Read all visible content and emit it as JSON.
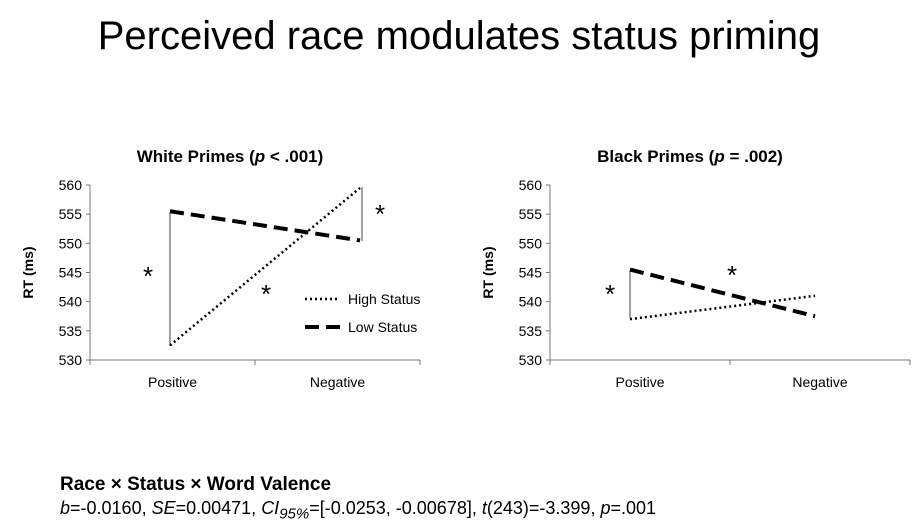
{
  "page_title": "Perceived race modulates status priming",
  "stats": {
    "heading": "Race × Status × Word Valence",
    "b_label": "b",
    "b_value": "=-0.0160, ",
    "se_label": "SE",
    "se_value": "=0.00471, ",
    "ci_label": "CI",
    "ci_sub": "95%",
    "ci_value": "=[-0.0253, -0.00678], ",
    "t_label": "t",
    "t_value": "(243)=-3.399, ",
    "p_label": "p",
    "p_value": "=.001"
  },
  "chart_data": [
    {
      "type": "line",
      "title_prefix": "White Primes (",
      "title_p": "p",
      "title_suffix": " < .001)",
      "ylabel": "RT (ms)",
      "ylim": [
        530,
        560
      ],
      "yticks": [
        "530",
        "535",
        "540",
        "545",
        "550",
        "555",
        "560"
      ],
      "categories": [
        "Positive",
        "Negative"
      ],
      "series": [
        {
          "name": "High Status",
          "values": [
            532.5,
            559.5
          ],
          "style": "dotted"
        },
        {
          "name": "Low Status",
          "values": [
            555.5,
            550.5
          ],
          "style": "dashed"
        }
      ],
      "legend": "right",
      "annotations": [
        "*",
        "*",
        "*"
      ]
    },
    {
      "type": "line",
      "title_prefix": "Black Primes (",
      "title_p": "p",
      "title_suffix": " = .002)",
      "ylabel": "RT (ms)",
      "ylim": [
        530,
        560
      ],
      "yticks": [
        "530",
        "535",
        "540",
        "545",
        "550",
        "555",
        "560"
      ],
      "categories": [
        "Positive",
        "Negative"
      ],
      "series": [
        {
          "name": "High Status",
          "values": [
            537,
            541
          ],
          "style": "dotted"
        },
        {
          "name": "Low Status",
          "values": [
            545.5,
            537.5
          ],
          "style": "dashed"
        }
      ],
      "annotations": [
        "*",
        "*"
      ]
    }
  ]
}
